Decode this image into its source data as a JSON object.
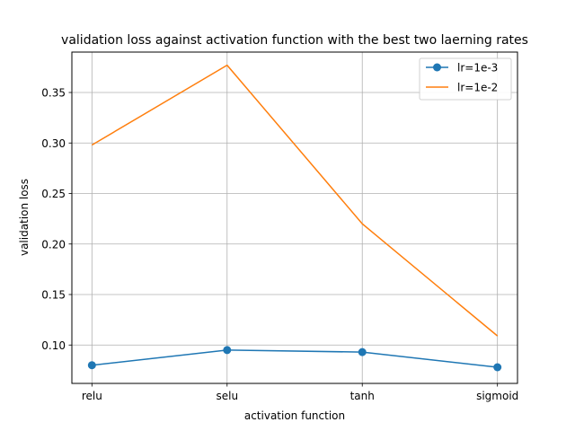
{
  "chart_data": {
    "type": "line",
    "title": "validation loss against activation function with the best two laerning rates",
    "xlabel": "activation function",
    "ylabel": "validation loss",
    "categories": [
      "relu",
      "selu",
      "tanh",
      "sigmoid"
    ],
    "ylim": [
      0.062,
      0.39
    ],
    "yticks": [
      "0.10",
      "0.15",
      "0.20",
      "0.25",
      "0.30",
      "0.35"
    ],
    "grid": true,
    "legend_position": "top-right",
    "series": [
      {
        "name": "lr=1e-3",
        "values": [
          0.08,
          0.095,
          0.093,
          0.078
        ],
        "color": "#1f77b4",
        "marker": "circle"
      },
      {
        "name": "lr=1e-2",
        "values": [
          0.298,
          0.377,
          0.22,
          0.109
        ],
        "color": "#ff7f0e",
        "marker": "none"
      }
    ]
  }
}
